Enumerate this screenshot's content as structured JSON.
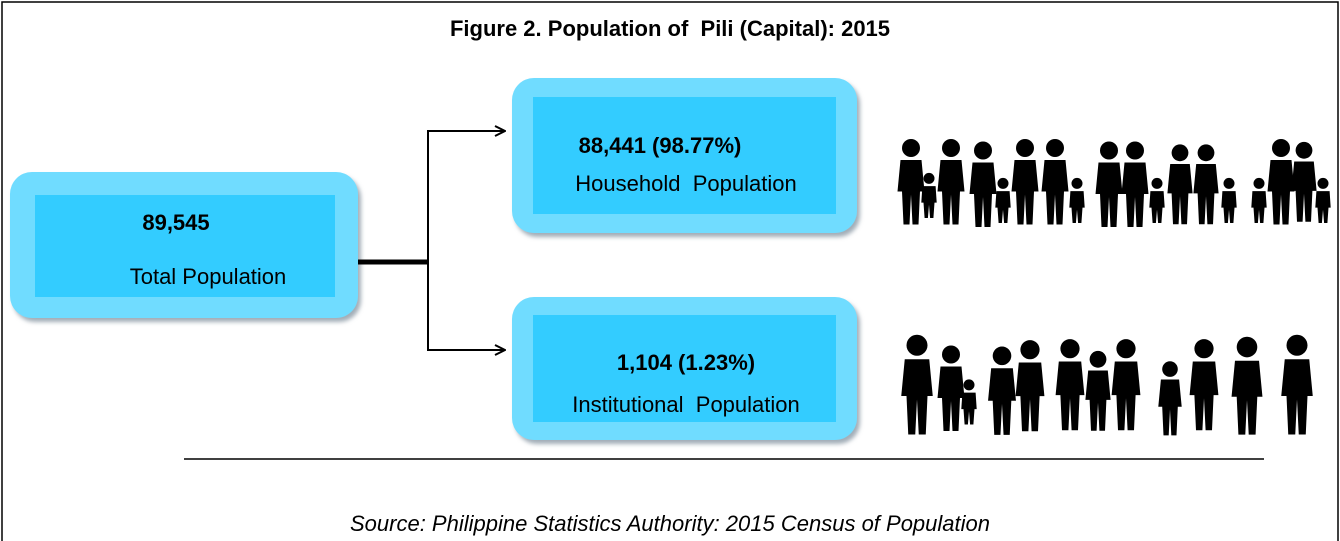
{
  "title": "Figure 2. Population of  Pili (Capital): 2015",
  "nodes": [
    {
      "value": "89,545",
      "label": "Total Population"
    },
    {
      "value": "88,441 (98.77%)",
      "label": "Household  Population"
    },
    {
      "value": "1,104 (1.23%)",
      "label": "Institutional  Population"
    }
  ],
  "source": "Source: Philippine Statistics Authority: 2015 Census of Population"
}
